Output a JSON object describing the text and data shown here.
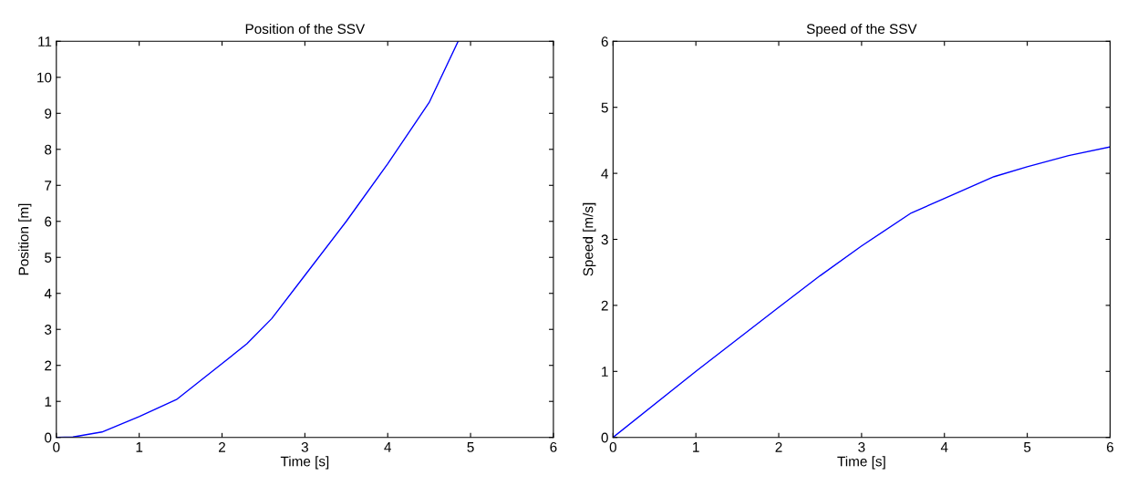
{
  "chart_data": [
    {
      "type": "line",
      "title": "Position of the SSV",
      "xlabel": "Time [s]",
      "ylabel": "Position [m]",
      "xlim": [
        0,
        6
      ],
      "ylim": [
        0,
        11
      ],
      "xticks": [
        0,
        1,
        2,
        3,
        4,
        5,
        6
      ],
      "yticks": [
        0,
        1,
        2,
        3,
        4,
        5,
        6,
        7,
        8,
        9,
        10,
        11
      ],
      "grid": false,
      "series": [
        {
          "color": "#0000ff",
          "x": [
            0,
            0.2,
            0.55,
            1,
            1.45,
            2,
            2.3,
            2.6,
            3,
            3.5,
            4,
            4.5,
            4.85
          ],
          "values": [
            0,
            0.01,
            0.15,
            0.58,
            1.05,
            2.05,
            2.6,
            3.3,
            4.5,
            6.0,
            7.6,
            9.3,
            11
          ]
        }
      ]
    },
    {
      "type": "line",
      "title": "Speed of the SSV",
      "xlabel": "Time [s]",
      "ylabel": "Speed [m/s]",
      "xlim": [
        0,
        6
      ],
      "ylim": [
        0,
        6
      ],
      "xticks": [
        0,
        1,
        2,
        3,
        4,
        5,
        6
      ],
      "yticks": [
        0,
        1,
        2,
        3,
        4,
        5,
        6
      ],
      "grid": false,
      "series": [
        {
          "color": "#0000ff",
          "x": [
            0,
            1,
            2,
            2.5,
            3,
            3.6,
            4,
            4.6,
            5,
            5.5,
            6
          ],
          "values": [
            0,
            1.0,
            1.97,
            2.45,
            2.9,
            3.4,
            3.62,
            3.95,
            4.1,
            4.27,
            4.4
          ]
        }
      ]
    }
  ]
}
